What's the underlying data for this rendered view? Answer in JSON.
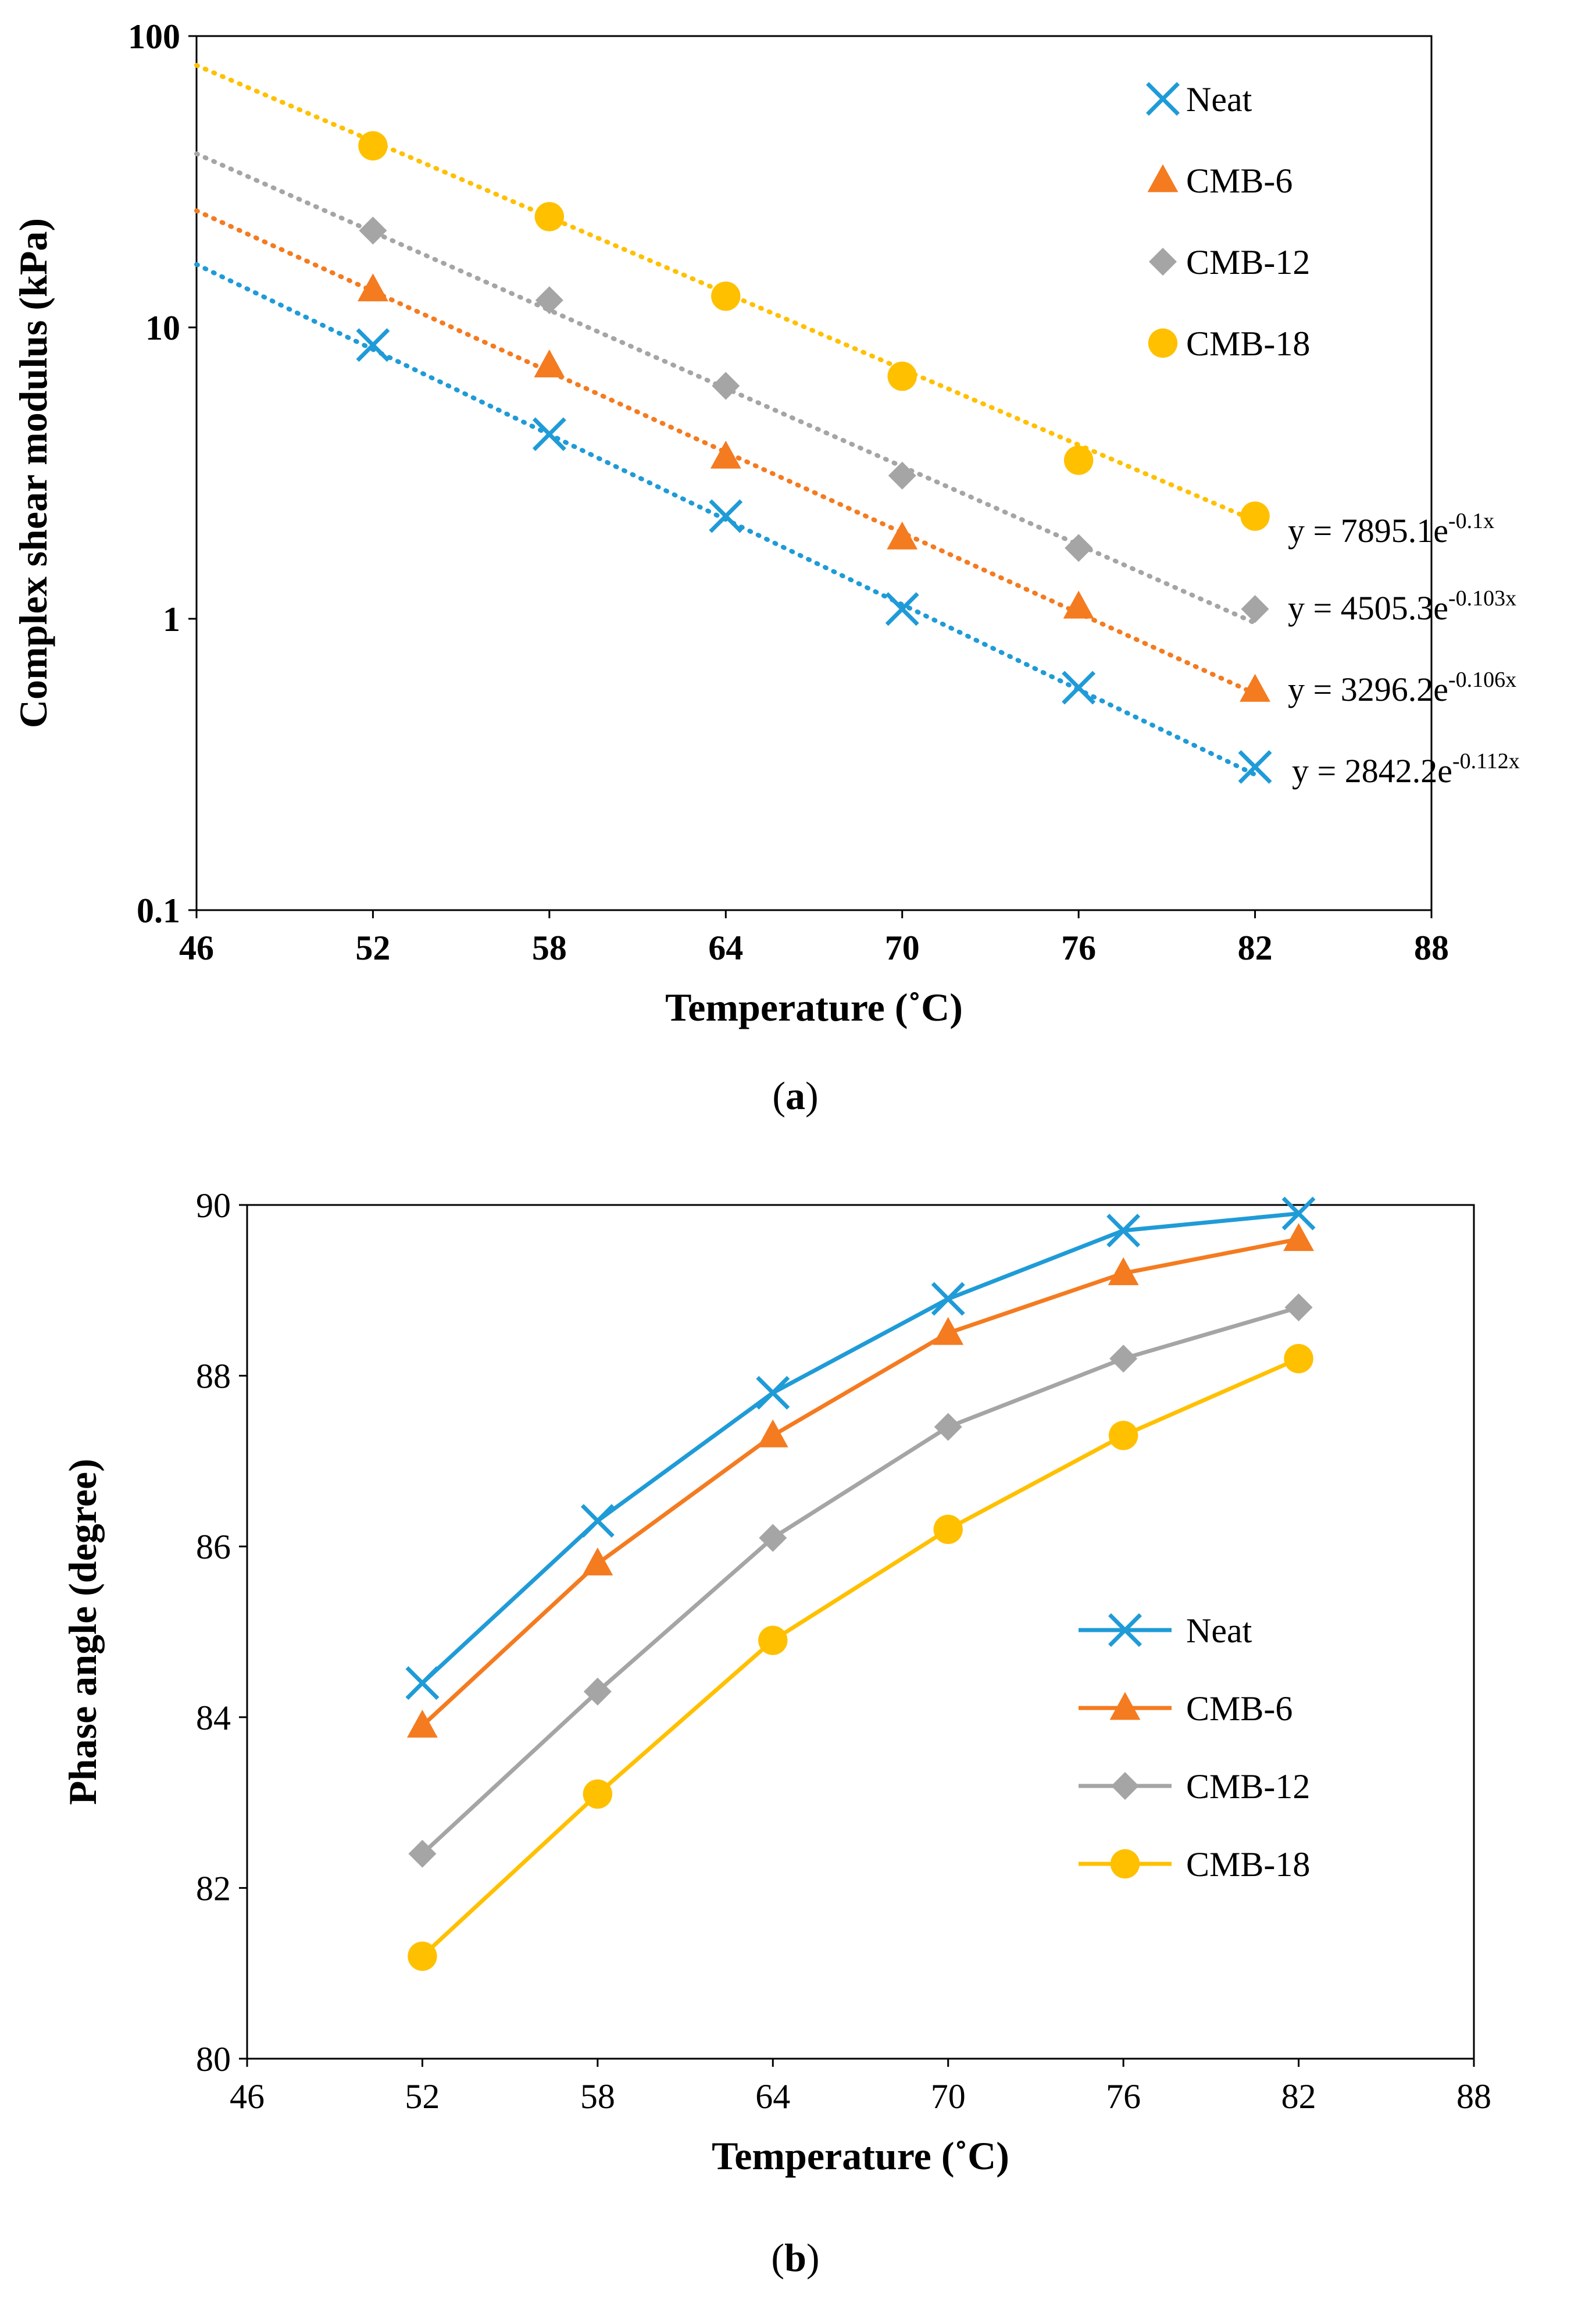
{
  "chart_data": [
    {
      "panel": "a",
      "type": "scatter",
      "caption": "a",
      "xlabel": "Temperature (˚C)",
      "ylabel": "Complex shear modulus (kPa)",
      "xlim": [
        46,
        88
      ],
      "xticks": [
        "46",
        "52",
        "58",
        "64",
        "70",
        "76",
        "82",
        "88"
      ],
      "ylim": [
        0.1,
        100
      ],
      "yscale": "log",
      "yticks": [
        "0.1",
        "1",
        "10",
        "100"
      ],
      "legend_position": "top-right",
      "x": [
        52,
        58,
        64,
        70,
        76,
        82
      ],
      "series": [
        {
          "name": "Neat",
          "marker": "x",
          "color": "#1f9bd7",
          "values": [
            8.7,
            4.3,
            2.25,
            1.08,
            0.58,
            0.31
          ],
          "trendline": {
            "a": 2842.2,
            "b": -0.112,
            "label": "y = 2842.2e",
            "exponent": "-0.112x"
          }
        },
        {
          "name": "CMB-6",
          "marker": "triangle",
          "color": "#f47b20",
          "values": [
            13.5,
            7.4,
            3.6,
            1.9,
            1.1,
            0.57
          ],
          "trendline": {
            "a": 3296.2,
            "b": -0.106,
            "label": "y = 3296.2e",
            "exponent": "-0.106x"
          }
        },
        {
          "name": "CMB-12",
          "marker": "diamond",
          "color": "#a5a5a5",
          "values": [
            21.5,
            12.4,
            6.3,
            3.1,
            1.75,
            1.08
          ],
          "trendline": {
            "a": 4505.3,
            "b": -0.103,
            "label": "y = 4505.3e",
            "exponent": "-0.103x"
          }
        },
        {
          "name": "CMB-18",
          "marker": "circle",
          "color": "#ffc000",
          "values": [
            42,
            24,
            12.8,
            6.8,
            3.5,
            2.25
          ],
          "trendline": {
            "a": 7895.1,
            "b": -0.1,
            "label": "y = 7895.1e",
            "exponent": "-0.1x"
          }
        }
      ]
    },
    {
      "panel": "b",
      "type": "line",
      "caption": "b",
      "xlabel": "Temperature (˚C)",
      "ylabel": "Phase angle (degree)",
      "xlim": [
        46,
        88
      ],
      "xticks": [
        "46",
        "52",
        "58",
        "64",
        "70",
        "76",
        "82",
        "88"
      ],
      "ylim": [
        80,
        90
      ],
      "yticks": [
        "80",
        "82",
        "84",
        "86",
        "88",
        "90"
      ],
      "legend_position": "center-right",
      "x": [
        52,
        58,
        64,
        70,
        76,
        82
      ],
      "series": [
        {
          "name": "Neat",
          "marker": "x",
          "color": "#1f9bd7",
          "values": [
            84.4,
            86.3,
            87.8,
            88.9,
            89.7,
            89.9
          ]
        },
        {
          "name": "CMB-6",
          "marker": "triangle",
          "color": "#f47b20",
          "values": [
            83.9,
            85.8,
            87.3,
            88.5,
            89.2,
            89.6
          ]
        },
        {
          "name": "CMB-12",
          "marker": "diamond",
          "color": "#a5a5a5",
          "values": [
            82.4,
            84.3,
            86.1,
            87.4,
            88.2,
            88.8
          ]
        },
        {
          "name": "CMB-18",
          "marker": "circle",
          "color": "#ffc000",
          "values": [
            81.2,
            83.1,
            84.9,
            86.2,
            87.3,
            88.2
          ]
        }
      ]
    }
  ]
}
